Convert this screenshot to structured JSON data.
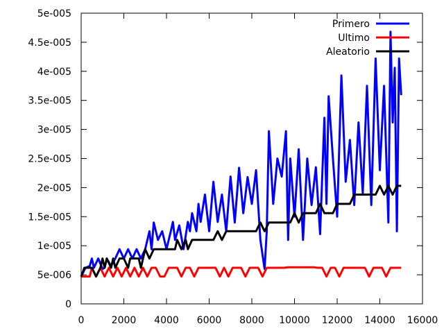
{
  "chart_data": {
    "type": "line",
    "title": "",
    "xlabel": "",
    "ylabel": "",
    "xlim": [
      0,
      16000
    ],
    "ylim": [
      0,
      5e-05
    ],
    "xticks": [
      0,
      2000,
      4000,
      6000,
      8000,
      10000,
      12000,
      14000,
      16000
    ],
    "xtick_labels": [
      "0",
      "2000",
      "4000",
      "6000",
      "8000",
      "10000",
      "12000",
      "14000",
      "16000"
    ],
    "yticks": [
      0,
      5e-06,
      1e-05,
      1.5e-05,
      2e-05,
      2.5e-05,
      3e-05,
      3.5e-05,
      4e-05,
      4.5e-05,
      5e-05
    ],
    "ytick_labels": [
      "0",
      "5e-006",
      "1e-005",
      "1.5e-005",
      "2e-005",
      "2.5e-005",
      "3e-005",
      "3.5e-005",
      "4e-005",
      "4.5e-005",
      "5e-005"
    ],
    "grid": false,
    "legend_position": "top-right",
    "series": [
      {
        "name": "Primero",
        "color": "#0000ff",
        "x": [
          0,
          200,
          400,
          500,
          600,
          800,
          1000,
          1100,
          1200,
          1400,
          1600,
          1800,
          2000,
          2200,
          2400,
          2600,
          2800,
          3000,
          3200,
          3300,
          3400,
          3600,
          3800,
          4000,
          4200,
          4300,
          4400,
          4600,
          4800,
          5000,
          5100,
          5200,
          5400,
          5500,
          5600,
          5800,
          6000,
          6200,
          6400,
          6600,
          6800,
          7000,
          7200,
          7400,
          7600,
          7800,
          8000,
          8200,
          8400,
          8600,
          8700,
          8800,
          9000,
          9200,
          9400,
          9600,
          9700,
          9800,
          10000,
          10200,
          10400,
          10600,
          10800,
          11000,
          11200,
          11400,
          11500,
          11600,
          11800,
          12000,
          12200,
          12400,
          12600,
          12800,
          13000,
          13200,
          13400,
          13600,
          13800,
          14000,
          14200,
          14400,
          14500,
          14600,
          14700,
          14800,
          14900,
          15000
        ],
        "values": [
          4.7e-06,
          6.2e-06,
          6.5e-06,
          7.8e-06,
          6.2e-06,
          7.8e-06,
          6e-06,
          6.2e-06,
          7.8e-06,
          6.5e-06,
          7.8e-06,
          9.4e-06,
          7.8e-06,
          9.4e-06,
          7.8e-06,
          9.4e-06,
          7.8e-06,
          9.4e-06,
          1.25e-05,
          9.4e-06,
          1.4e-05,
          1.1e-05,
          1.25e-05,
          9.4e-06,
          1.25e-05,
          1.41e-05,
          1.1e-05,
          1.35e-05,
          9.4e-06,
          1.41e-05,
          1.25e-05,
          1.56e-05,
          1.25e-05,
          1.72e-05,
          1.41e-05,
          1.88e-05,
          1.25e-05,
          2.1e-05,
          1.41e-05,
          1.88e-05,
          1.25e-05,
          2.19e-05,
          1.4e-05,
          2.34e-05,
          1.56e-05,
          2.18e-05,
          1.72e-05,
          2.3e-05,
          1.1e-05,
          6e-06,
          1.25e-05,
          2.97e-05,
          1.72e-05,
          2.5e-05,
          2.19e-05,
          2.97e-05,
          1.1e-05,
          2.5e-05,
          1.5e-05,
          2.66e-05,
          1.1e-05,
          2.5e-05,
          1.7e-05,
          2.35e-05,
          1.2e-05,
          3.2e-05,
          1.72e-05,
          3.57e-05,
          2.5e-05,
          1.5e-05,
          3.93e-05,
          2.1e-05,
          2.82e-05,
          1.7e-05,
          3.12e-05,
          1.9e-05,
          3.75e-05,
          1.7e-05,
          4.22e-05,
          2.3e-05,
          3.75e-05,
          1.4e-05,
          4.68e-05,
          3.12e-05,
          4.06e-05,
          1.25e-05,
          4.22e-05,
          3.59e-05
        ]
      },
      {
        "name": "Ultimo",
        "color": "#ff0000",
        "x": [
          0,
          200,
          400,
          500,
          700,
          900,
          1100,
          1300,
          1500,
          1700,
          1900,
          2100,
          2300,
          2500,
          2700,
          2900,
          3100,
          3300,
          3500,
          3700,
          3900,
          4100,
          4300,
          4500,
          4700,
          4900,
          5100,
          5300,
          5500,
          5700,
          5900,
          6100,
          6300,
          6500,
          6700,
          6900,
          7100,
          7300,
          7500,
          7700,
          7900,
          8100,
          8300,
          8500,
          8700,
          8900,
          9100,
          9300,
          9500,
          9700,
          9900,
          10100,
          10300,
          10500,
          10700,
          10900,
          11100,
          11300,
          11500,
          11700,
          11900,
          12100,
          12300,
          12500,
          12700,
          12900,
          13100,
          13300,
          13500,
          13700,
          13900,
          14100,
          14300,
          14500,
          14700,
          14900,
          15000
        ],
        "values": [
          4.7e-06,
          4.7e-06,
          4.7e-06,
          6.2e-06,
          4.7e-06,
          6.2e-06,
          4.7e-06,
          6.2e-06,
          4.7e-06,
          6.2e-06,
          4.7e-06,
          6.2e-06,
          4.7e-06,
          6.2e-06,
          4.7e-06,
          6.2e-06,
          4.7e-06,
          6.2e-06,
          6.2e-06,
          4.7e-06,
          4.7e-06,
          6.2e-06,
          6.2e-06,
          6.2e-06,
          4.7e-06,
          6.2e-06,
          6.2e-06,
          4.7e-06,
          6.2e-06,
          6.2e-06,
          6.2e-06,
          6.2e-06,
          6.2e-06,
          4.7e-06,
          6.2e-06,
          4.7e-06,
          6.2e-06,
          6.2e-06,
          6.2e-06,
          4.7e-06,
          6.2e-06,
          6.2e-06,
          6.2e-06,
          4.7e-06,
          6.2e-06,
          6.2e-06,
          6.2e-06,
          6.2e-06,
          6.2e-06,
          6.3e-06,
          6.3e-06,
          6.3e-06,
          6.3e-06,
          6.3e-06,
          6.3e-06,
          6.3e-06,
          6.2e-06,
          6.2e-06,
          4.7e-06,
          6.2e-06,
          6.2e-06,
          4.7e-06,
          6.2e-06,
          6.2e-06,
          6.2e-06,
          6.2e-06,
          6.2e-06,
          6.2e-06,
          4.7e-06,
          6.2e-06,
          6.2e-06,
          6.2e-06,
          4.7e-06,
          6.2e-06,
          6.2e-06,
          6.2e-06,
          6.2e-06
        ]
      },
      {
        "name": "Aleatorio",
        "color": "#000000",
        "x": [
          0,
          150,
          300,
          500,
          700,
          900,
          1000,
          1100,
          1200,
          1400,
          1500,
          1600,
          1800,
          2000,
          2200,
          2300,
          2500,
          2700,
          2800,
          3000,
          3200,
          3400,
          3500,
          3700,
          3900,
          4000,
          4200,
          4400,
          4500,
          4700,
          4900,
          5000,
          5200,
          5400,
          5600,
          5800,
          6000,
          6200,
          6400,
          6600,
          6800,
          7000,
          7200,
          7400,
          7600,
          7800,
          8000,
          8200,
          8400,
          8600,
          8800,
          9000,
          9200,
          9400,
          9600,
          9800,
          10000,
          10200,
          10400,
          10600,
          10800,
          11000,
          11200,
          11400,
          11600,
          11800,
          12000,
          12200,
          12400,
          12600,
          12800,
          13000,
          13200,
          13400,
          13600,
          13800,
          14000,
          14200,
          14400,
          14600,
          14800,
          15000
        ],
        "values": [
          4.7e-06,
          6.2e-06,
          6.2e-06,
          6.2e-06,
          4.7e-06,
          6.2e-06,
          7.8e-06,
          6.2e-06,
          7.8e-06,
          6.2e-06,
          7.8e-06,
          6.2e-06,
          7.8e-06,
          7.8e-06,
          6.2e-06,
          7.8e-06,
          7.8e-06,
          7.8e-06,
          6.2e-06,
          9.4e-06,
          7.8e-06,
          9.4e-06,
          9.4e-06,
          9.4e-06,
          9.4e-06,
          9.4e-06,
          9.4e-06,
          9.4e-06,
          1.1e-05,
          9.4e-06,
          1.1e-05,
          9.4e-06,
          1.1e-05,
          1.1e-05,
          1.1e-05,
          1.1e-05,
          1.1e-05,
          1.1e-05,
          1.25e-05,
          1.1e-05,
          1.25e-05,
          1.25e-05,
          1.25e-05,
          1.25e-05,
          1.25e-05,
          1.25e-05,
          1.25e-05,
          1.25e-05,
          1.4e-05,
          1.25e-05,
          1.4e-05,
          1.4e-05,
          1.4e-05,
          1.4e-05,
          1.4e-05,
          1.4e-05,
          1.56e-05,
          1.4e-05,
          1.56e-05,
          1.56e-05,
          1.56e-05,
          1.56e-05,
          1.72e-05,
          1.56e-05,
          1.56e-05,
          1.56e-05,
          1.72e-05,
          1.72e-05,
          1.72e-05,
          1.72e-05,
          1.88e-05,
          1.88e-05,
          1.88e-05,
          1.88e-05,
          1.88e-05,
          1.88e-05,
          2.03e-05,
          1.88e-05,
          2.03e-05,
          1.88e-05,
          2.03e-05,
          2.03e-05
        ]
      }
    ]
  }
}
